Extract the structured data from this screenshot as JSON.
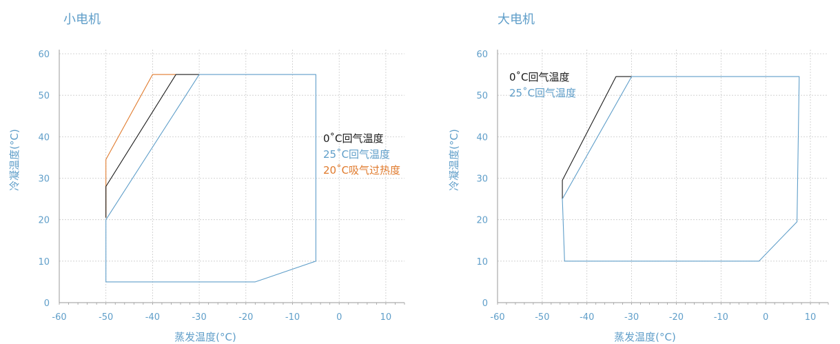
{
  "chart_data": [
    {
      "type": "line",
      "title": "小电机",
      "xlabel": "蒸发温度(°C)",
      "ylabel": "冷凝温度(°C)",
      "xlim": [
        -60,
        14
      ],
      "ylim": [
        0,
        61
      ],
      "xticks": [
        -60,
        -50,
        -40,
        -30,
        -20,
        -10,
        0,
        10
      ],
      "yticks": [
        0,
        10,
        20,
        30,
        40,
        50,
        60
      ],
      "grid": true,
      "legend_position": "right",
      "series": [
        {
          "name": "20˚C吸气过热度",
          "color": "#e07a2c",
          "x": [
            -50,
            -50,
            -40,
            -35
          ],
          "y": [
            20.5,
            34.5,
            55,
            55
          ]
        },
        {
          "name": "0˚C回气温度",
          "color": "#1a1a1a",
          "x": [
            -50,
            -50,
            -35,
            -30
          ],
          "y": [
            20.5,
            28,
            55,
            55
          ]
        },
        {
          "name": "25˚C回气温度",
          "color": "#5f9ec9",
          "x": [
            -30,
            -50,
            -50,
            -18,
            -5,
            -5,
            -30
          ],
          "y": [
            55,
            20,
            5,
            5,
            10,
            55,
            55
          ]
        }
      ]
    },
    {
      "type": "line",
      "title": "大电机",
      "xlabel": "蒸发温度(°C)",
      "ylabel": "冷凝温度(°C)",
      "xlim": [
        -60,
        14
      ],
      "ylim": [
        0,
        61
      ],
      "xticks": [
        -60,
        -50,
        -40,
        -30,
        -20,
        -10,
        0,
        10
      ],
      "yticks": [
        0,
        10,
        20,
        30,
        40,
        50,
        60
      ],
      "grid": true,
      "legend_position": "top-left",
      "series": [
        {
          "name": "0˚C回气温度",
          "color": "#1a1a1a",
          "x": [
            -45.5,
            -45.5,
            -33.5,
            -30
          ],
          "y": [
            25,
            29.5,
            54.5,
            54.5
          ]
        },
        {
          "name": "25˚C回气温度",
          "color": "#5f9ec9",
          "x": [
            -30,
            -45.5,
            -45,
            -1.5,
            7,
            7.5,
            -30
          ],
          "y": [
            54.5,
            25,
            10,
            10,
            19.5,
            54.5,
            54.5
          ]
        }
      ]
    }
  ]
}
